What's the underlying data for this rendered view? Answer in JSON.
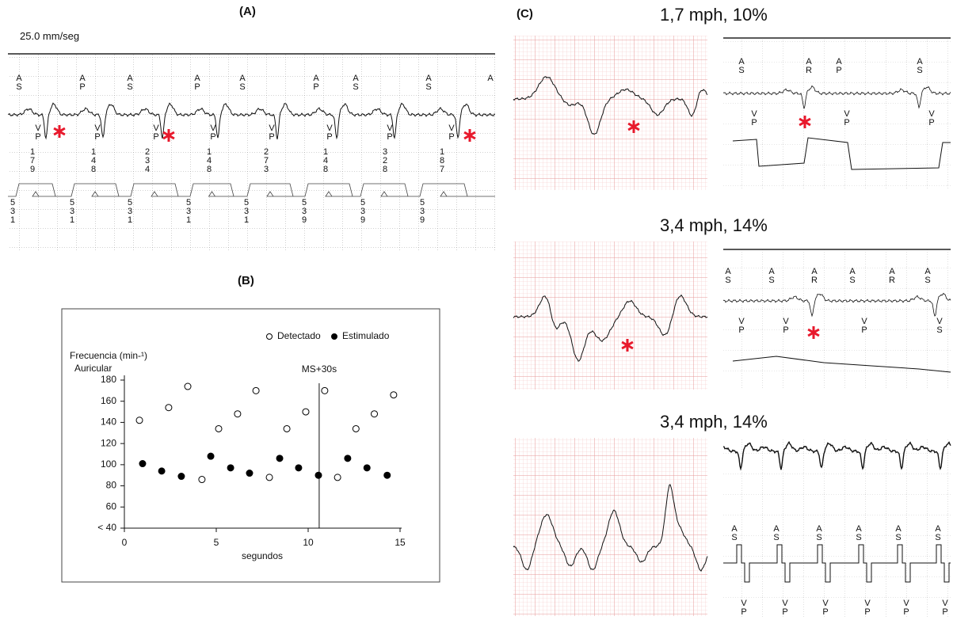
{
  "panel_a": {
    "label": "(A)",
    "speed": "25.0 mm/seg",
    "top_markers": [
      "AS",
      "AP",
      "AS",
      "AP",
      "AS",
      "AP",
      "AS",
      "AS",
      "A"
    ],
    "ventricular_markers": [
      "VP",
      "VP",
      "VP",
      "VP",
      "VP",
      "VP",
      "VP",
      "VP"
    ],
    "intervals": [
      "179",
      "148",
      "234",
      "148",
      "273",
      "148",
      "328",
      "187"
    ],
    "bottom_values": [
      "531",
      "531",
      "531",
      "531",
      "531",
      "539",
      "539",
      "539"
    ]
  },
  "chart_data": {
    "type": "scatter",
    "panel_label": "(B)",
    "ylabel": [
      "Frecuencia (min-¹)",
      "Auricular"
    ],
    "xlabel": "segundos",
    "xlim": [
      0,
      15
    ],
    "ylim": [
      40,
      180
    ],
    "xticks": [
      0,
      5,
      10,
      15
    ],
    "yticks": [
      {
        "value": 40,
        "label": "< 40"
      },
      60,
      80,
      100,
      120,
      140,
      160,
      180
    ],
    "vline": {
      "x": 10.6,
      "label": "MS+30s"
    },
    "legend": "top-right",
    "series": [
      {
        "name": "Detectado",
        "color": "#000000",
        "marker": "open",
        "x": [
          0.82,
          2.41,
          3.45,
          4.22,
          5.13,
          6.16,
          7.16,
          7.89,
          8.84,
          9.87,
          10.9,
          11.6,
          12.6,
          13.6,
          14.65
        ],
        "values": [
          142,
          154,
          174,
          86,
          134,
          148,
          170,
          88,
          134,
          150,
          170,
          88,
          134,
          148,
          166
        ]
      },
      {
        "name": "Estimulado",
        "color": "#000000",
        "marker": "filled",
        "x": [
          0.99,
          2.03,
          3.1,
          4.7,
          5.78,
          6.81,
          8.45,
          9.48,
          10.56,
          12.15,
          13.2,
          14.3
        ],
        "values": [
          101,
          94,
          89,
          108,
          97,
          92,
          106,
          97,
          90,
          106,
          97,
          90
        ]
      }
    ]
  },
  "panel_c": {
    "label": "(C)",
    "rows": [
      {
        "title": "1,7 mph, 10%",
        "atrial_markers": [
          "AS",
          "AR",
          "AP",
          "AS"
        ],
        "ventricular_markers": [
          "VP",
          "VP",
          "VP"
        ]
      },
      {
        "title": "3,4 mph, 14%",
        "atrial_markers": [
          "AS",
          "AS",
          "AR",
          "AS",
          "AR",
          "AS"
        ],
        "ventricular_markers": [
          "VP",
          "VP",
          "VP",
          "VS"
        ]
      },
      {
        "title": "3,4 mph, 14%",
        "atrial_markers": [
          "AS",
          "AS",
          "AS",
          "AS",
          "AS",
          "AS"
        ],
        "ventricular_markers": [
          "VP",
          "VP",
          "VP",
          "VP",
          "VP",
          "VP"
        ]
      }
    ]
  }
}
